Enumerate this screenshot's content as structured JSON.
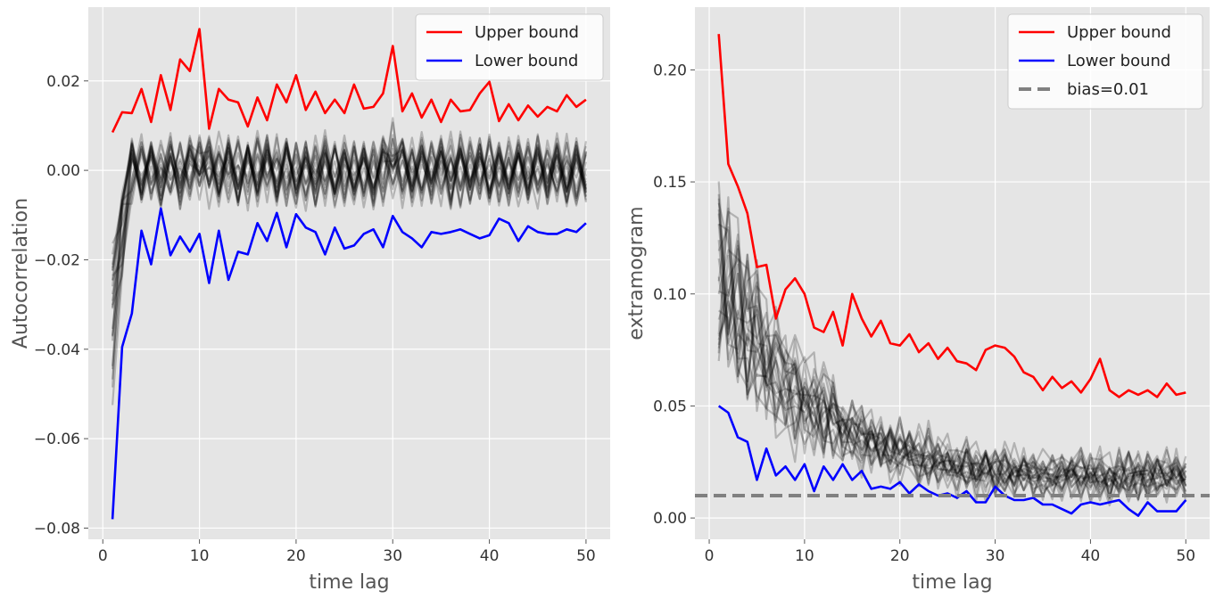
{
  "chart_data": [
    {
      "type": "line",
      "xlabel": "time lag",
      "ylabel": "Autocorrelation",
      "xlim": [
        -1.5,
        52.5
      ],
      "ylim": [
        -0.0825,
        0.0365
      ],
      "xticks": [
        0,
        10,
        20,
        30,
        40,
        50
      ],
      "xtick_labels": [
        "0",
        "10",
        "20",
        "30",
        "40",
        "50"
      ],
      "yticks": [
        -0.08,
        -0.06,
        -0.04,
        -0.02,
        0.0,
        0.02
      ],
      "ytick_labels": [
        "−0.08",
        "−0.06",
        "−0.04",
        "−0.02",
        "0.00",
        "0.02"
      ],
      "grid": true,
      "legend_position": "top-right",
      "legend": [
        "Upper bound",
        "Lower bound"
      ],
      "series": [
        {
          "name": "Upper bound",
          "color": "#ff0000",
          "x": [
            1,
            2,
            3,
            4,
            5,
            6,
            7,
            8,
            9,
            10,
            11,
            12,
            13,
            14,
            15,
            16,
            17,
            18,
            19,
            20,
            21,
            22,
            23,
            24,
            25,
            26,
            27,
            28,
            29,
            30,
            31,
            32,
            33,
            34,
            35,
            36,
            37,
            38,
            39,
            40,
            41,
            42,
            43,
            44,
            45,
            46,
            47,
            48,
            49,
            50
          ],
          "values": [
            0.0085,
            0.013,
            0.0128,
            0.0182,
            0.0108,
            0.0213,
            0.0135,
            0.0248,
            0.0222,
            0.0316,
            0.0093,
            0.0182,
            0.0158,
            0.0152,
            0.0098,
            0.0163,
            0.0112,
            0.0192,
            0.0152,
            0.0213,
            0.0135,
            0.0176,
            0.0128,
            0.0158,
            0.0128,
            0.0192,
            0.0138,
            0.0142,
            0.0172,
            0.0278,
            0.0132,
            0.0172,
            0.0118,
            0.0158,
            0.0108,
            0.0158,
            0.0132,
            0.0135,
            0.0172,
            0.0198,
            0.011,
            0.0148,
            0.0112,
            0.0145,
            0.012,
            0.0142,
            0.0132,
            0.0168,
            0.0142,
            0.0158
          ]
        },
        {
          "name": "Lower bound",
          "color": "#0000ff",
          "x": [
            1,
            2,
            3,
            4,
            5,
            6,
            7,
            8,
            9,
            10,
            11,
            12,
            13,
            14,
            15,
            16,
            17,
            18,
            19,
            20,
            21,
            22,
            23,
            24,
            25,
            26,
            27,
            28,
            29,
            30,
            31,
            32,
            33,
            34,
            35,
            36,
            37,
            38,
            39,
            40,
            41,
            42,
            43,
            44,
            45,
            46,
            47,
            48,
            49,
            50
          ],
          "values": [
            -0.078,
            -0.0395,
            -0.032,
            -0.0135,
            -0.021,
            -0.0085,
            -0.019,
            -0.0148,
            -0.0182,
            -0.0142,
            -0.0252,
            -0.0135,
            -0.0245,
            -0.0182,
            -0.0188,
            -0.0118,
            -0.0158,
            -0.0095,
            -0.0172,
            -0.0098,
            -0.0128,
            -0.0138,
            -0.0188,
            -0.0128,
            -0.0175,
            -0.0168,
            -0.0142,
            -0.0132,
            -0.0172,
            -0.0102,
            -0.0138,
            -0.0152,
            -0.0172,
            -0.0138,
            -0.0142,
            -0.0138,
            -0.0132,
            -0.0142,
            -0.0152,
            -0.0145,
            -0.0108,
            -0.0118,
            -0.0158,
            -0.0125,
            -0.0138,
            -0.0142,
            -0.0142,
            -0.0132,
            -0.0138,
            -0.0118
          ]
        }
      ],
      "simulations": {
        "count": 24,
        "color": "#000000",
        "opacity": 0.22,
        "x_from": 1,
        "x_to": 50,
        "first_value_range": [
          -0.055,
          -0.012
        ],
        "center": 0.0,
        "alternation": 0.0045,
        "noise": 0.0025
      }
    },
    {
      "type": "line",
      "xlabel": "time lag",
      "ylabel": "extramogram",
      "xlim": [
        -1.5,
        52.5
      ],
      "ylim": [
        -0.0095,
        0.228
      ],
      "xticks": [
        0,
        10,
        20,
        30,
        40,
        50
      ],
      "xtick_labels": [
        "0",
        "10",
        "20",
        "30",
        "40",
        "50"
      ],
      "yticks": [
        0.0,
        0.05,
        0.1,
        0.15,
        0.2
      ],
      "ytick_labels": [
        "0.00",
        "0.05",
        "0.10",
        "0.15",
        "0.20"
      ],
      "grid": true,
      "legend_position": "top-right",
      "legend": [
        "Upper bound",
        "Lower bound",
        "bias=0.01"
      ],
      "series": [
        {
          "name": "Upper bound",
          "color": "#ff0000",
          "x": [
            1,
            2,
            3,
            4,
            5,
            6,
            7,
            8,
            9,
            10,
            11,
            12,
            13,
            14,
            15,
            16,
            17,
            18,
            19,
            20,
            21,
            22,
            23,
            24,
            25,
            26,
            27,
            28,
            29,
            30,
            31,
            32,
            33,
            34,
            35,
            36,
            37,
            38,
            39,
            40,
            41,
            42,
            43,
            44,
            45,
            46,
            47,
            48,
            49,
            50
          ],
          "values": [
            0.216,
            0.158,
            0.148,
            0.136,
            0.112,
            0.113,
            0.089,
            0.102,
            0.107,
            0.1,
            0.085,
            0.083,
            0.092,
            0.077,
            0.1,
            0.089,
            0.081,
            0.088,
            0.078,
            0.077,
            0.082,
            0.074,
            0.078,
            0.071,
            0.076,
            0.07,
            0.069,
            0.066,
            0.075,
            0.077,
            0.076,
            0.072,
            0.065,
            0.063,
            0.057,
            0.063,
            0.058,
            0.061,
            0.056,
            0.062,
            0.071,
            0.057,
            0.054,
            0.057,
            0.055,
            0.057,
            0.054,
            0.06,
            0.055,
            0.056
          ]
        },
        {
          "name": "Lower bound",
          "color": "#0000ff",
          "x": [
            1,
            2,
            3,
            4,
            5,
            6,
            7,
            8,
            9,
            10,
            11,
            12,
            13,
            14,
            15,
            16,
            17,
            18,
            19,
            20,
            21,
            22,
            23,
            24,
            25,
            26,
            27,
            28,
            29,
            30,
            31,
            32,
            33,
            34,
            35,
            36,
            37,
            38,
            39,
            40,
            41,
            42,
            43,
            44,
            45,
            46,
            47,
            48,
            49,
            50
          ],
          "values": [
            0.05,
            0.047,
            0.036,
            0.034,
            0.017,
            0.031,
            0.019,
            0.023,
            0.017,
            0.024,
            0.012,
            0.023,
            0.017,
            0.024,
            0.017,
            0.021,
            0.013,
            0.014,
            0.013,
            0.016,
            0.011,
            0.015,
            0.012,
            0.01,
            0.011,
            0.009,
            0.012,
            0.007,
            0.007,
            0.014,
            0.01,
            0.008,
            0.008,
            0.009,
            0.006,
            0.006,
            0.004,
            0.002,
            0.006,
            0.007,
            0.006,
            0.007,
            0.008,
            0.004,
            0.001,
            0.007,
            0.003,
            0.003,
            0.003,
            0.008
          ]
        },
        {
          "name": "bias=0.01",
          "color": "#808080",
          "dashed": true,
          "x": [
            -1.5,
            52.5
          ],
          "values": [
            0.01,
            0.01
          ]
        }
      ],
      "simulations": {
        "count": 24,
        "color": "#000000",
        "opacity": 0.22,
        "x_from": 1,
        "x_to": 50,
        "first_value_range": [
          0.06,
          0.15
        ],
        "floor": 0.012,
        "alternation": 0.004,
        "noise": 0.004
      }
    }
  ]
}
